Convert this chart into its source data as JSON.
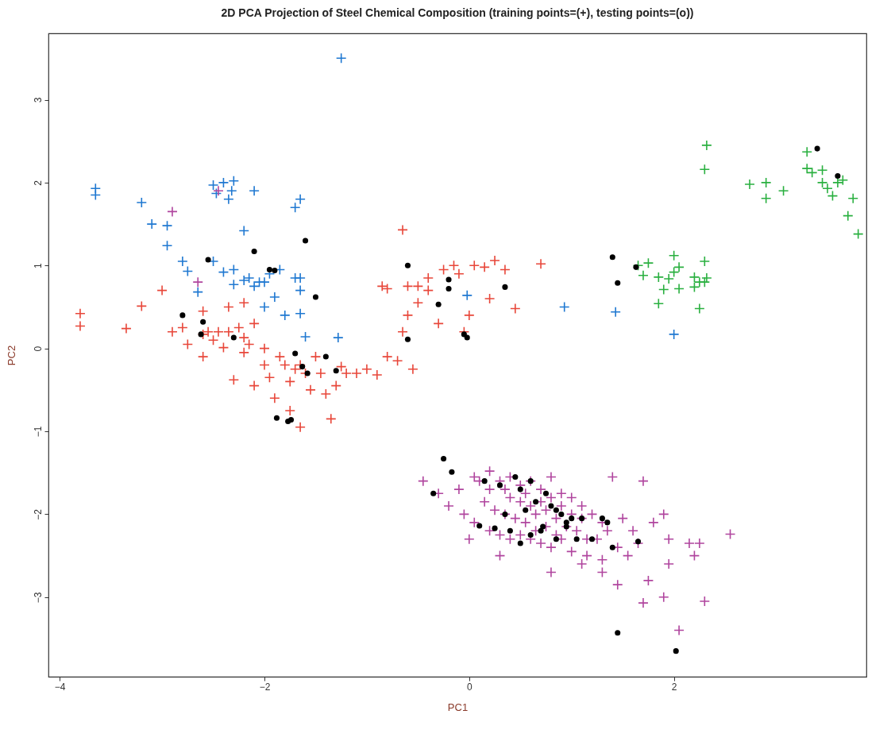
{
  "chart_data": {
    "type": "scatter",
    "title": "2D PCA Projection of Steel Chemical Composition (training points=(+), testing points=(o))",
    "xlabel": "PC1",
    "ylabel": "PC2",
    "xlim": [
      -4.11,
      3.88
    ],
    "ylim": [
      -3.96,
      3.8
    ],
    "xticks": [
      -4,
      -2,
      0,
      2
    ],
    "yticks": [
      -3,
      -2,
      -1,
      0,
      1,
      2,
      3
    ],
    "grid": false,
    "series": [
      {
        "color": "#e8473a",
        "marker": "cross",
        "x": [
          -3.8,
          -3.8,
          -3.35,
          -3.2,
          -3.0,
          -2.8,
          -2.75,
          -2.6,
          -2.55,
          -2.5,
          -2.45,
          -2.4,
          -2.6,
          -2.3,
          -2.35,
          -2.35,
          -2.25,
          -2.2,
          -2.15,
          -2.2,
          -2.0,
          -2.0,
          -1.95,
          -1.85,
          -1.8,
          -1.75,
          -1.7,
          -1.65,
          -1.6,
          -1.55,
          -1.5,
          -1.45,
          -1.4,
          -1.3,
          -1.25,
          -1.2,
          -1.1,
          -1.0,
          -0.9,
          -2.1,
          -2.1,
          -2.2,
          -1.9,
          -1.75,
          -1.65,
          -1.35,
          -2.6,
          -2.9,
          -0.8,
          -0.7,
          -0.65,
          -0.6,
          -0.5,
          -0.6,
          -0.5,
          -0.8,
          -0.85,
          -0.65,
          -0.4,
          -0.3,
          -0.25,
          -0.15,
          -0.1,
          0.0,
          0.05,
          0.15,
          0.25,
          0.2,
          0.35,
          0.45,
          0.7,
          -0.4,
          -0.55,
          -0.05
        ],
        "values": [
          0.42,
          0.27,
          0.24,
          0.51,
          0.7,
          0.25,
          0.05,
          0.17,
          0.2,
          0.1,
          0.2,
          0.01,
          -0.1,
          -0.38,
          0.5,
          0.2,
          0.25,
          0.13,
          0.05,
          -0.05,
          0.0,
          -0.2,
          -0.35,
          -0.1,
          -0.2,
          -0.4,
          -0.25,
          -0.2,
          -0.3,
          -0.5,
          -0.1,
          -0.3,
          -0.55,
          -0.45,
          -0.22,
          -0.3,
          -0.3,
          -0.25,
          -0.32,
          -0.45,
          0.3,
          0.55,
          -0.6,
          -0.75,
          -0.95,
          -0.85,
          0.45,
          0.2,
          -0.1,
          -0.15,
          0.2,
          0.4,
          0.55,
          0.75,
          0.75,
          0.72,
          0.75,
          1.43,
          0.7,
          0.3,
          0.95,
          1.0,
          0.9,
          0.4,
          1.0,
          0.98,
          1.06,
          0.6,
          0.95,
          0.48,
          1.02,
          0.85,
          -0.25,
          0.2
        ]
      },
      {
        "color": "#1f78d1",
        "marker": "cross",
        "x": [
          -3.65,
          -3.65,
          -3.2,
          -3.1,
          -2.95,
          -2.95,
          -2.8,
          -2.75,
          -2.65,
          -2.5,
          -2.4,
          -2.3,
          -2.47,
          -2.35,
          -2.32,
          -2.1,
          -2.2,
          -2.5,
          -2.4,
          -2.3,
          -2.3,
          -2.2,
          -2.15,
          -2.05,
          -2.0,
          -2.0,
          -1.95,
          -1.9,
          -1.85,
          -1.8,
          -1.7,
          -1.65,
          -1.65,
          -1.65,
          -1.7,
          -1.65,
          -1.6,
          -1.28,
          -1.25,
          -0.02,
          0.93,
          1.43,
          2.0,
          -2.1
        ],
        "values": [
          1.93,
          1.85,
          1.76,
          1.5,
          1.48,
          1.24,
          1.05,
          0.93,
          0.68,
          1.97,
          2.0,
          2.02,
          1.87,
          1.8,
          1.9,
          1.9,
          1.42,
          1.05,
          0.92,
          0.95,
          0.77,
          0.82,
          0.85,
          0.8,
          0.5,
          0.8,
          0.9,
          0.62,
          0.95,
          0.4,
          0.85,
          0.85,
          0.7,
          0.42,
          1.7,
          1.8,
          0.14,
          0.13,
          3.5,
          0.64,
          0.5,
          0.44,
          0.17,
          0.75
        ]
      },
      {
        "color": "#b0459e",
        "marker": "cross",
        "x": [
          -2.65,
          -2.9,
          -2.45,
          -0.45,
          -0.3,
          -0.2,
          0.05,
          0.2,
          2.55,
          2.3,
          2.05,
          1.9,
          1.75,
          1.7,
          2.15,
          2.25,
          1.8,
          1.4,
          1.7,
          1.9,
          1.95,
          2.2,
          1.95,
          0.3,
          0.0,
          0.8,
          1.1,
          1.3,
          1.45,
          0.1,
          0.2,
          0.3,
          0.4,
          0.5,
          0.6,
          0.7,
          0.8,
          0.9,
          1.0,
          1.1,
          1.2,
          1.3,
          0.15,
          0.25,
          0.35,
          0.45,
          0.55,
          0.65,
          0.75,
          0.85,
          0.95,
          1.05,
          1.15,
          1.25,
          1.35,
          1.45,
          0.2,
          0.3,
          0.4,
          0.5,
          0.6,
          0.7,
          0.8,
          0.9,
          1.0,
          0.4,
          0.5,
          0.6,
          0.7,
          0.8,
          0.9,
          1.0,
          1.1,
          0.35,
          0.55,
          0.65,
          0.75,
          0.85,
          1.15,
          1.3,
          1.5,
          1.6,
          -0.1,
          -0.05,
          0.05,
          1.55,
          1.65
        ],
        "values": [
          0.8,
          1.65,
          1.9,
          -1.6,
          -1.75,
          -1.9,
          -1.55,
          -1.48,
          -2.24,
          -3.05,
          -3.4,
          -3.0,
          -2.8,
          -3.07,
          -2.35,
          -2.35,
          -2.1,
          -1.55,
          -1.6,
          -2.0,
          -2.3,
          -2.5,
          -2.6,
          -2.5,
          -2.3,
          -2.7,
          -2.6,
          -2.7,
          -2.85,
          -1.6,
          -1.7,
          -1.6,
          -1.55,
          -1.65,
          -1.6,
          -1.7,
          -1.55,
          -1.75,
          -1.8,
          -1.9,
          -2.0,
          -2.1,
          -1.85,
          -1.95,
          -2.0,
          -2.05,
          -2.1,
          -2.0,
          -1.95,
          -2.05,
          -2.15,
          -2.2,
          -2.3,
          -2.3,
          -2.2,
          -2.4,
          -2.2,
          -2.25,
          -2.3,
          -2.25,
          -2.3,
          -2.35,
          -2.4,
          -2.3,
          -2.45,
          -1.8,
          -1.85,
          -1.9,
          -1.85,
          -1.8,
          -1.9,
          -2.0,
          -2.05,
          -1.7,
          -1.75,
          -2.2,
          -2.15,
          -2.25,
          -2.5,
          -2.55,
          -2.05,
          -2.2,
          -1.7,
          -2.0,
          -2.1,
          -2.5,
          -2.35
        ]
      },
      {
        "color": "#2ab040",
        "marker": "cross",
        "x": [
          2.32,
          2.3,
          2.74,
          2.9,
          2.9,
          3.07,
          3.3,
          3.3,
          3.35,
          3.45,
          3.45,
          3.5,
          3.55,
          3.6,
          3.65,
          3.75,
          3.7,
          3.8,
          1.65,
          1.75,
          1.7,
          1.85,
          2.0,
          2.05,
          2.0,
          1.95,
          1.9,
          1.85,
          2.2,
          2.25,
          2.3,
          2.3,
          2.25,
          2.05,
          2.2,
          2.32
        ],
        "values": [
          2.45,
          2.16,
          1.98,
          2.0,
          1.81,
          1.9,
          2.37,
          2.17,
          2.12,
          2.15,
          2.0,
          1.93,
          1.84,
          2.0,
          2.03,
          1.81,
          1.6,
          1.38,
          1.0,
          1.03,
          0.88,
          0.86,
          1.12,
          0.98,
          0.92,
          0.84,
          0.71,
          0.54,
          0.86,
          0.8,
          0.8,
          1.05,
          0.48,
          0.72,
          0.74,
          0.85
        ]
      },
      {
        "color": "#000000",
        "marker": "circle",
        "x": [
          -2.8,
          -2.55,
          -2.6,
          -2.62,
          -2.3,
          -2.1,
          -1.95,
          -1.9,
          -1.6,
          -1.5,
          -1.7,
          -1.63,
          -1.58,
          -1.4,
          -1.3,
          -1.88,
          -1.77,
          -1.74,
          -0.6,
          -0.6,
          -0.3,
          -0.2,
          -0.2,
          -0.05,
          -0.02,
          0.35,
          1.4,
          1.45,
          1.63,
          3.4,
          3.6,
          -0.25,
          -0.17,
          -0.35,
          0.15,
          0.3,
          0.45,
          0.5,
          0.6,
          0.55,
          0.65,
          0.75,
          0.8,
          0.85,
          0.9,
          0.95,
          1.0,
          1.05,
          1.1,
          1.2,
          1.3,
          0.7,
          0.72,
          0.6,
          0.5,
          0.4,
          0.35,
          0.85,
          0.95,
          1.35,
          1.4,
          1.65,
          2.02,
          1.45,
          0.1,
          0.25
        ],
        "values": [
          0.4,
          1.07,
          0.32,
          0.17,
          0.13,
          1.17,
          0.95,
          0.94,
          1.3,
          0.62,
          -0.06,
          -0.22,
          -0.3,
          -0.1,
          -0.27,
          -0.84,
          -0.88,
          -0.86,
          1.0,
          0.11,
          0.53,
          0.83,
          0.72,
          0.17,
          0.13,
          0.74,
          1.1,
          0.79,
          0.98,
          2.41,
          2.08,
          -1.33,
          -1.49,
          -1.75,
          -1.6,
          -1.65,
          -1.55,
          -1.7,
          -1.6,
          -1.95,
          -1.85,
          -1.75,
          -1.9,
          -1.95,
          -2.0,
          -2.1,
          -2.05,
          -2.3,
          -2.05,
          -2.3,
          -2.05,
          -2.2,
          -2.15,
          -2.25,
          -2.35,
          -2.2,
          -2.0,
          -2.3,
          -2.15,
          -2.1,
          -2.4,
          -2.33,
          -3.65,
          -3.43,
          -2.14,
          -2.17
        ]
      }
    ]
  }
}
